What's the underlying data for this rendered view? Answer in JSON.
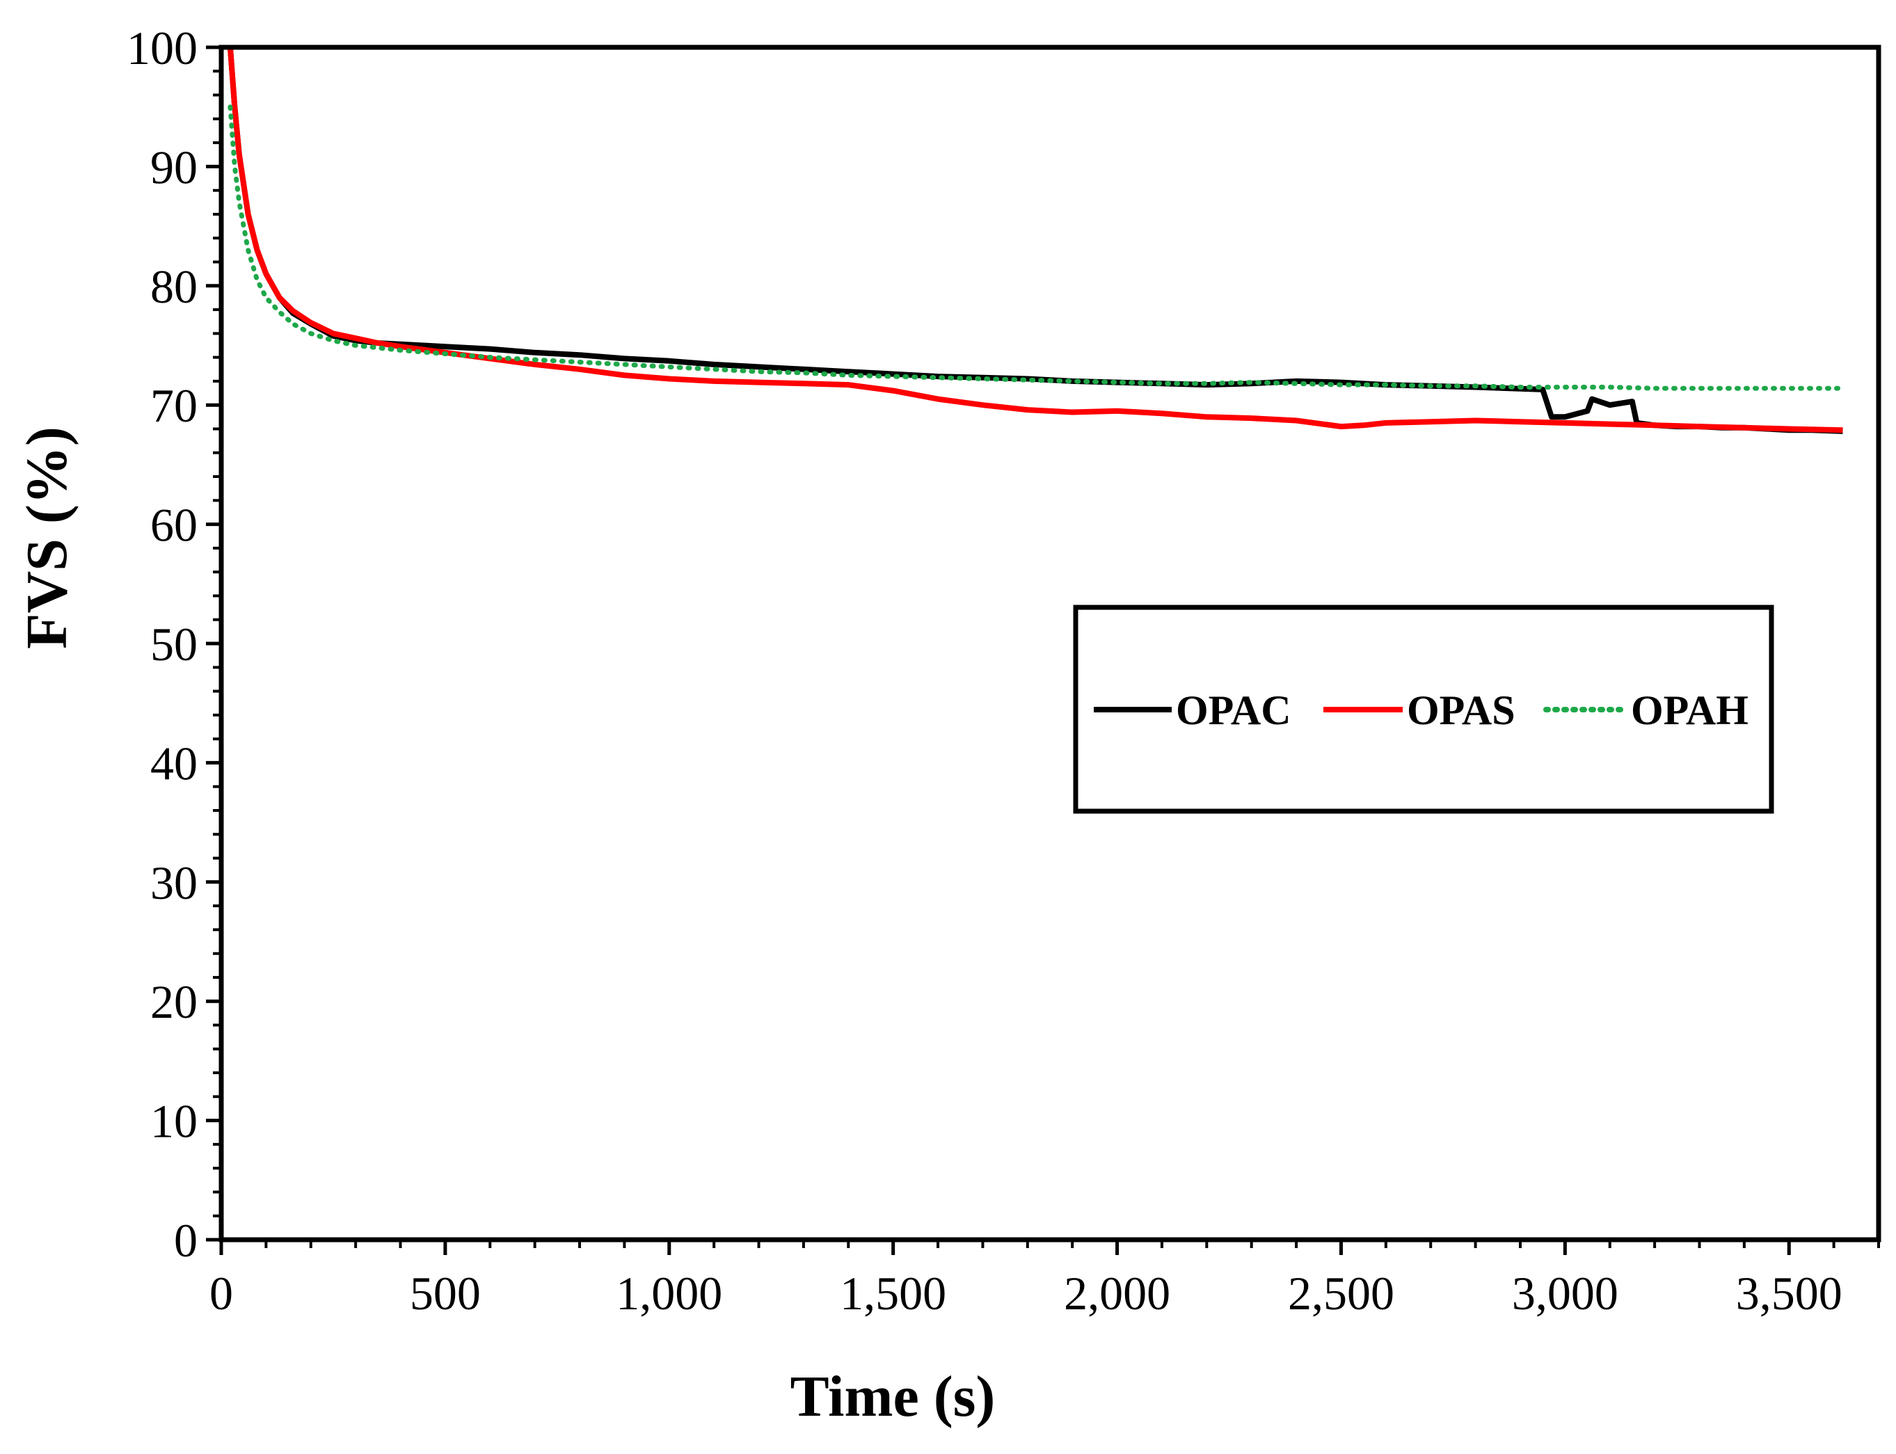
{
  "chart_data": {
    "type": "line",
    "title": "",
    "xlabel": "Time (s)",
    "ylabel": "FVS (%)",
    "xlim": [
      0,
      3700
    ],
    "ylim": [
      0,
      100
    ],
    "x_ticks": [
      0,
      500,
      1000,
      1500,
      2000,
      2500,
      3000,
      3500
    ],
    "x_tick_labels": [
      "0",
      "500",
      "1,000",
      "1,500",
      "2,000",
      "2,500",
      "3,000",
      "3,500"
    ],
    "y_ticks": [
      0,
      10,
      20,
      30,
      40,
      50,
      60,
      70,
      80,
      90,
      100
    ],
    "y_tick_labels": [
      "0",
      "10",
      "20",
      "30",
      "40",
      "50",
      "60",
      "70",
      "80",
      "90",
      "100"
    ],
    "grid": false,
    "legend_position": "right-center",
    "series": [
      {
        "name": "OPAC",
        "color": "#000000",
        "style": "solid",
        "x": [
          20,
          30,
          40,
          60,
          80,
          100,
          130,
          160,
          200,
          250,
          300,
          350,
          400,
          500,
          600,
          700,
          800,
          900,
          1000,
          1100,
          1200,
          1300,
          1400,
          1500,
          1600,
          1700,
          1800,
          1900,
          2000,
          2100,
          2200,
          2300,
          2400,
          2500,
          2600,
          2700,
          2800,
          2950,
          2970,
          3000,
          3050,
          3060,
          3100,
          3150,
          3160,
          3200,
          3250,
          3300,
          3350,
          3400,
          3450,
          3500,
          3550,
          3620
        ],
        "y": [
          100,
          95,
          91,
          86,
          83,
          81,
          79,
          77.7,
          76.8,
          75.8,
          75.4,
          75.2,
          75.1,
          74.9,
          74.7,
          74.4,
          74.2,
          73.9,
          73.7,
          73.4,
          73.2,
          73.0,
          72.8,
          72.6,
          72.4,
          72.3,
          72.2,
          72.0,
          71.9,
          71.8,
          71.7,
          71.8,
          72.0,
          71.9,
          71.7,
          71.6,
          71.5,
          71.3,
          69.0,
          69.0,
          69.5,
          70.5,
          70.0,
          70.3,
          68.5,
          68.3,
          68.2,
          68.2,
          68.1,
          68.1,
          68.0,
          67.9,
          67.9,
          67.8
        ]
      },
      {
        "name": "OPAS",
        "color": "#ff0000",
        "style": "solid",
        "x": [
          20,
          30,
          40,
          60,
          80,
          100,
          130,
          160,
          200,
          250,
          300,
          350,
          400,
          500,
          600,
          700,
          800,
          900,
          1000,
          1100,
          1200,
          1300,
          1400,
          1500,
          1600,
          1700,
          1800,
          1900,
          2000,
          2100,
          2200,
          2300,
          2400,
          2500,
          2550,
          2600,
          2700,
          2800,
          2900,
          3000,
          3100,
          3200,
          3300,
          3400,
          3500,
          3620
        ],
        "y": [
          100,
          95,
          91,
          86,
          83,
          81,
          79,
          77.9,
          76.9,
          76.0,
          75.6,
          75.2,
          74.9,
          74.4,
          73.9,
          73.4,
          73.0,
          72.5,
          72.2,
          72.0,
          71.9,
          71.8,
          71.7,
          71.2,
          70.5,
          70.0,
          69.6,
          69.4,
          69.5,
          69.3,
          69.0,
          68.9,
          68.7,
          68.2,
          68.3,
          68.5,
          68.6,
          68.7,
          68.6,
          68.5,
          68.4,
          68.3,
          68.2,
          68.1,
          68.0,
          67.9
        ]
      },
      {
        "name": "OPAH",
        "color": "#1fa84a",
        "style": "dotted",
        "x": [
          20,
          30,
          40,
          60,
          80,
          100,
          130,
          160,
          200,
          250,
          300,
          350,
          400,
          500,
          600,
          700,
          800,
          900,
          1000,
          1100,
          1200,
          1300,
          1400,
          1500,
          1600,
          1700,
          1800,
          1900,
          2000,
          2100,
          2200,
          2300,
          2400,
          2500,
          2600,
          2700,
          2800,
          2900,
          3000,
          3100,
          3200,
          3300,
          3400,
          3500,
          3620
        ],
        "y": [
          95,
          90,
          87,
          83,
          80.5,
          79,
          77.8,
          76.8,
          76.0,
          75.4,
          75.0,
          74.8,
          74.6,
          74.3,
          74.0,
          73.8,
          73.6,
          73.4,
          73.2,
          73.0,
          72.8,
          72.7,
          72.5,
          72.4,
          72.3,
          72.2,
          72.1,
          72.0,
          71.9,
          71.8,
          71.8,
          71.9,
          71.8,
          71.7,
          71.7,
          71.6,
          71.6,
          71.5,
          71.5,
          71.5,
          71.4,
          71.4,
          71.4,
          71.4,
          71.4
        ]
      }
    ]
  }
}
